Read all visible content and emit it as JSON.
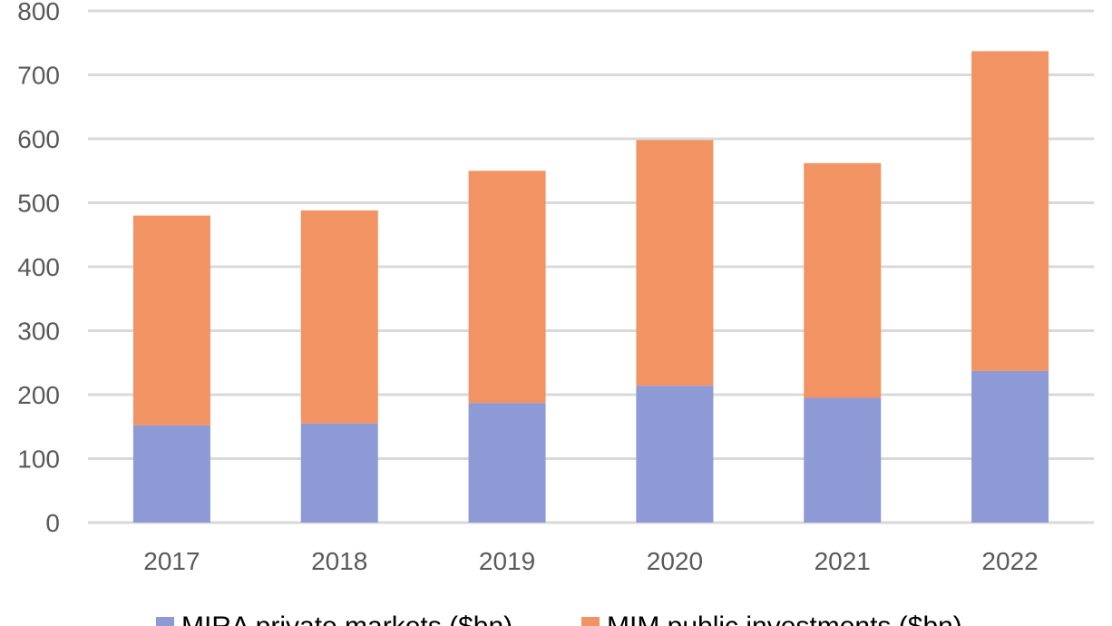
{
  "chart_data": {
    "type": "bar",
    "stacked": true,
    "categories": [
      "2017",
      "2018",
      "2019",
      "2020",
      "2021",
      "2022"
    ],
    "series": [
      {
        "name": "MIRA private markets ($bn)",
        "color": "#8e9ad6",
        "values": [
          152,
          155,
          187,
          214,
          195,
          237
        ]
      },
      {
        "name": "MIM public investments ($bn)",
        "color": "#f29363",
        "values": [
          328,
          333,
          363,
          384,
          367,
          500
        ]
      }
    ],
    "ylim": [
      0,
      800
    ],
    "yticks": [
      "0",
      "100",
      "200",
      "300",
      "400",
      "500",
      "600",
      "700",
      "800"
    ],
    "grid": true,
    "legend": "bottom",
    "title": "",
    "xlabel": "",
    "ylabel": ""
  }
}
